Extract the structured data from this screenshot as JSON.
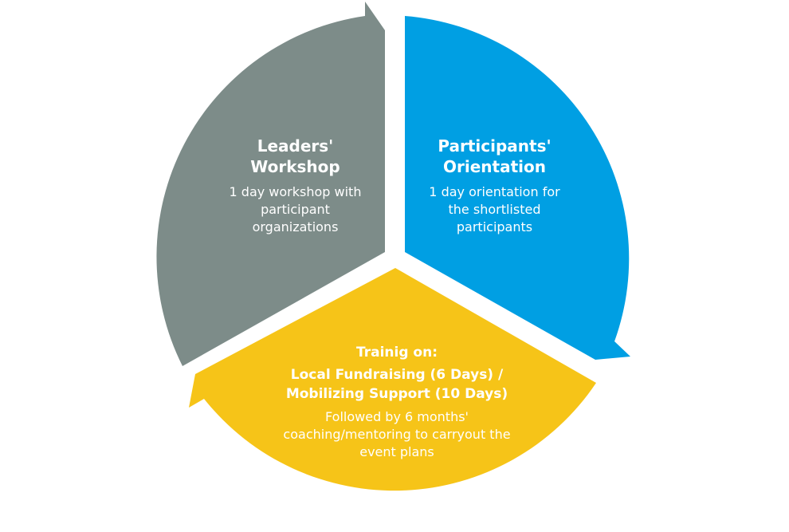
{
  "colors": {
    "leaders_segment": "#7d8c89",
    "participants_segment": "#009fe3",
    "training_segment": "#f6c418",
    "background": "#ffffff",
    "label_text": "#ffffff"
  },
  "segments": {
    "leaders": {
      "title_line1": "Leaders'",
      "title_line2": "Workshop",
      "body_line1": "1 day workshop with",
      "body_line2": "participant",
      "body_line3": "organizations"
    },
    "participants": {
      "title_line1": "Participants'",
      "title_line2": "Orientation",
      "body_line1": "1 day orientation for",
      "body_line2": "the shortlisted",
      "body_line3": "participants"
    },
    "training": {
      "heading": "Trainig on:",
      "title_line1": "Local Fundraising (6 Days) /",
      "title_line2": "Mobilizing Support (10 Days)",
      "body_line1": "Followed by 6 months'",
      "body_line2": "coaching/mentoring to carryout the",
      "body_line3": "event plans"
    }
  }
}
